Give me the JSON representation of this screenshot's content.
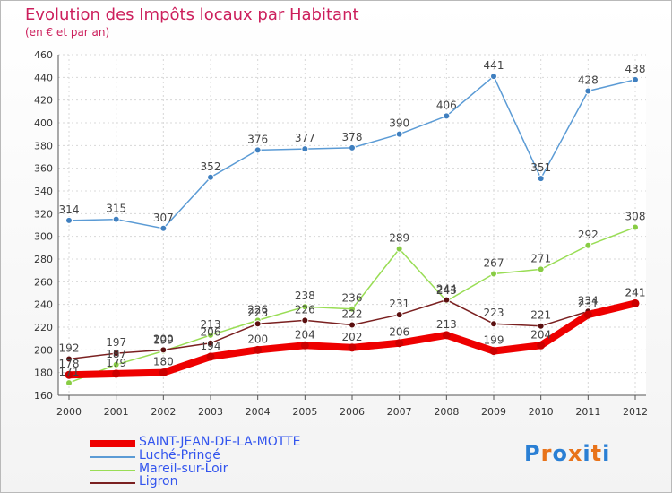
{
  "header": {
    "title": "Evolution des Impôts locaux par Habitant",
    "subtitle": "(en € et par an)"
  },
  "chart_data": {
    "type": "line",
    "title": "Evolution des Impôts locaux par Habitant",
    "subtitle": "(en € et par an)",
    "xlabel": "",
    "ylabel": "",
    "x": [
      2000,
      2001,
      2002,
      2003,
      2004,
      2005,
      2006,
      2007,
      2008,
      2009,
      2010,
      2011,
      2012
    ],
    "ylim": [
      160,
      460
    ],
    "yticks": [
      160,
      180,
      200,
      220,
      240,
      260,
      280,
      300,
      320,
      340,
      360,
      380,
      400,
      420,
      440,
      460
    ],
    "grid": true,
    "legend_position": "bottom-left",
    "series": [
      {
        "name": "SAINT-JEAN-DE-LA-MOTTE",
        "color": "#ee0000",
        "values": [
          178,
          179,
          180,
          194,
          200,
          204,
          202,
          206,
          213,
          199,
          204,
          231,
          241
        ]
      },
      {
        "name": "Luché-Pringé",
        "color": "#5b9bd5",
        "values": [
          314,
          315,
          307,
          352,
          376,
          377,
          378,
          390,
          406,
          441,
          351,
          428,
          438
        ]
      },
      {
        "name": "Mareil-sur-Loir",
        "color": "#99dd55",
        "values": [
          171,
          187,
          199,
          213,
          226,
          238,
          236,
          289,
          243,
          267,
          271,
          292,
          308
        ]
      },
      {
        "name": "Ligron",
        "color": "#7a2020",
        "values": [
          192,
          197,
          200,
          206,
          223,
          226,
          222,
          231,
          244,
          223,
          221,
          234,
          241
        ]
      }
    ],
    "point_labels": [
      [
        "178",
        "179",
        "180",
        "194",
        "200",
        "204",
        "202",
        "206",
        "213",
        "199",
        "204",
        "231",
        "241"
      ],
      [
        "314",
        "315",
        "307",
        "352",
        "376",
        "377",
        "378",
        "390",
        "406",
        "441",
        "351",
        "428",
        "438"
      ],
      [
        "171",
        "187",
        "199",
        "213",
        "226",
        "238",
        "236",
        "289",
        "243",
        "267",
        "271",
        "292",
        "308"
      ],
      [
        "192",
        "197",
        "200",
        "206",
        "223",
        "226",
        "222",
        "231",
        "244",
        "223",
        "221",
        "234",
        "241"
      ]
    ]
  },
  "legend": {
    "items": [
      {
        "label": "SAINT-JEAN-DE-LA-MOTTE",
        "color": "#ee0000"
      },
      {
        "label": "Luché-Pringé",
        "color": "#5b9bd5"
      },
      {
        "label": "Mareil-sur-Loir",
        "color": "#99dd55"
      },
      {
        "label": "Ligron",
        "color": "#7a2020"
      }
    ]
  },
  "logo": {
    "text": "Proxiti"
  }
}
